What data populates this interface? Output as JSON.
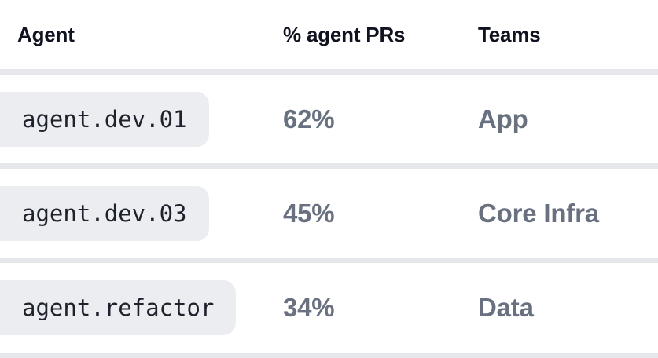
{
  "table": {
    "columns": [
      {
        "label": "Agent"
      },
      {
        "label": "% agent PRs"
      },
      {
        "label": "Teams"
      }
    ],
    "rows": [
      {
        "agent": "agent.dev.01",
        "pct": "62%",
        "team": "App"
      },
      {
        "agent": "agent.dev.03",
        "pct": "45%",
        "team": "Core Infra"
      },
      {
        "agent": "agent.refactor",
        "pct": "34%",
        "team": "Data"
      }
    ]
  },
  "colors": {
    "header_text": "#10131f",
    "muted_text": "#697180",
    "pill_background": "#ecedf0",
    "divider": "#e5e7ea",
    "background": "#ffffff"
  }
}
